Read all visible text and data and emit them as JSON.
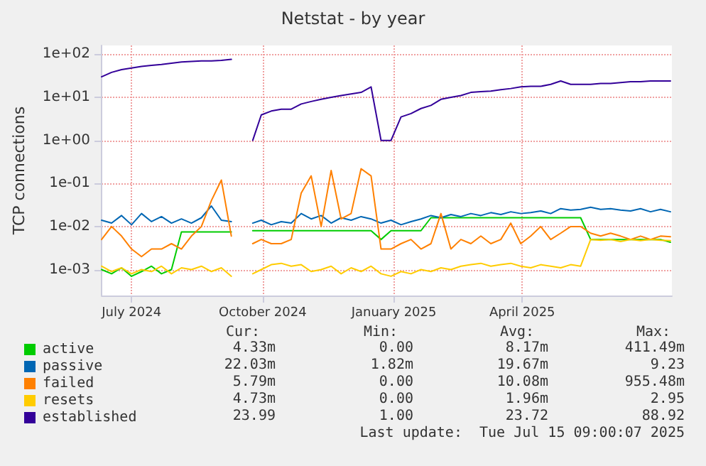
{
  "chart_data": {
    "type": "line",
    "title": "Netstat - by year",
    "ylabel": "TCP connections",
    "x": [
      "2024-06-10",
      "2024-06-17",
      "2024-06-24",
      "2024-07-01",
      "2024-07-08",
      "2024-07-15",
      "2024-07-22",
      "2024-07-29",
      "2024-08-05",
      "2024-08-12",
      "2024-08-19",
      "2024-08-26",
      "2024-09-02",
      "2024-09-09",
      "2024-09-16",
      "2024-09-24",
      "2024-09-30",
      "2024-10-07",
      "2024-10-14",
      "2024-10-21",
      "2024-10-28",
      "2024-11-04",
      "2024-11-11",
      "2024-11-18",
      "2024-11-25",
      "2024-12-02",
      "2024-12-09",
      "2024-12-16",
      "2024-12-23",
      "2024-12-30",
      "2025-01-06",
      "2025-01-13",
      "2025-01-20",
      "2025-01-27",
      "2025-02-03",
      "2025-02-10",
      "2025-02-17",
      "2025-02-24",
      "2025-03-03",
      "2025-03-10",
      "2025-03-17",
      "2025-03-24",
      "2025-03-31",
      "2025-04-07",
      "2025-04-14",
      "2025-04-21",
      "2025-04-28",
      "2025-05-05",
      "2025-05-12",
      "2025-05-19",
      "2025-05-26",
      "2025-06-02",
      "2025-06-09",
      "2025-06-16",
      "2025-06-23",
      "2025-06-30",
      "2025-07-07",
      "2025-07-14"
    ],
    "series": [
      {
        "name": "active",
        "color": "#00cc00",
        "values": [
          0.001,
          0.0008,
          0.0011,
          0.0007,
          0.0009,
          0.0012,
          0.0008,
          0.001,
          0.0075,
          0.0075,
          0.0075,
          0.0075,
          0.0075,
          0.0075,
          null,
          0.008,
          0.008,
          0.008,
          0.008,
          0.008,
          0.008,
          0.008,
          0.008,
          0.008,
          0.008,
          0.008,
          0.008,
          0.008,
          0.005,
          0.008,
          0.008,
          0.008,
          0.008,
          0.016,
          0.016,
          0.016,
          0.016,
          0.016,
          0.016,
          0.016,
          0.016,
          0.016,
          0.016,
          0.016,
          0.016,
          0.016,
          0.016,
          0.016,
          0.016,
          0.005,
          0.005,
          0.005,
          0.005,
          0.005,
          0.005,
          0.005,
          0.005,
          0.0043
        ]
      },
      {
        "name": "passive",
        "color": "#0066b3",
        "values": [
          0.014,
          0.012,
          0.018,
          0.011,
          0.02,
          0.013,
          0.017,
          0.012,
          0.015,
          0.012,
          0.016,
          0.03,
          0.014,
          0.013,
          null,
          0.012,
          0.014,
          0.011,
          0.013,
          0.012,
          0.02,
          0.015,
          0.018,
          0.012,
          0.016,
          0.014,
          0.017,
          0.015,
          0.012,
          0.014,
          0.011,
          0.013,
          0.015,
          0.018,
          0.016,
          0.019,
          0.017,
          0.02,
          0.018,
          0.021,
          0.019,
          0.022,
          0.02,
          0.021,
          0.023,
          0.02,
          0.026,
          0.024,
          0.025,
          0.028,
          0.025,
          0.026,
          0.024,
          0.023,
          0.026,
          0.022,
          0.025,
          0.022
        ]
      },
      {
        "name": "failed",
        "color": "#ff8000",
        "values": [
          0.005,
          0.01,
          0.006,
          0.003,
          0.002,
          0.003,
          0.003,
          0.004,
          0.003,
          0.006,
          0.01,
          0.04,
          0.12,
          0.006,
          null,
          0.004,
          0.005,
          0.004,
          0.004,
          0.005,
          0.06,
          0.15,
          0.01,
          0.2,
          0.015,
          0.02,
          0.22,
          0.15,
          0.003,
          0.003,
          0.004,
          0.005,
          0.003,
          0.004,
          0.02,
          0.003,
          0.005,
          0.004,
          0.006,
          0.004,
          0.005,
          0.012,
          0.004,
          0.006,
          0.01,
          0.005,
          0.007,
          0.01,
          0.01,
          0.007,
          0.006,
          0.007,
          0.006,
          0.005,
          0.006,
          0.005,
          0.006,
          0.0058
        ]
      },
      {
        "name": "resets",
        "color": "#ffcc00",
        "values": [
          0.0012,
          0.0009,
          0.0011,
          0.0008,
          0.001,
          0.0009,
          0.0012,
          0.0008,
          0.0011,
          0.001,
          0.0012,
          0.0009,
          0.0011,
          0.0007,
          null,
          0.0008,
          0.001,
          0.0013,
          0.0014,
          0.0012,
          0.0013,
          0.0009,
          0.001,
          0.0012,
          0.0008,
          0.0011,
          0.0009,
          0.0012,
          0.0008,
          0.0007,
          0.0009,
          0.0008,
          0.001,
          0.0009,
          0.0011,
          0.001,
          0.0012,
          0.0013,
          0.0014,
          0.0012,
          0.0013,
          0.0014,
          0.0012,
          0.0011,
          0.0013,
          0.0012,
          0.0011,
          0.0013,
          0.0012,
          0.005,
          0.0048,
          0.005,
          0.0045,
          0.005,
          0.0047,
          0.005,
          0.0048,
          0.0047
        ]
      },
      {
        "name": "established",
        "color": "#330099",
        "values": [
          30,
          38,
          44,
          48,
          52,
          55,
          58,
          62,
          66,
          68,
          70,
          70,
          72,
          76,
          null,
          1,
          3.9,
          4.8,
          5.3,
          5.3,
          7,
          8,
          9,
          10,
          11,
          12,
          13,
          17.5,
          1,
          1,
          3.5,
          4.2,
          5.5,
          6.5,
          9,
          10,
          11,
          13,
          13.5,
          14,
          15,
          16,
          17.5,
          18,
          18,
          20,
          24,
          20,
          20,
          20,
          21,
          21,
          22,
          23,
          23,
          24,
          24,
          24
        ]
      }
    ],
    "xlim": [
      "2024-06-10",
      "2025-07-15"
    ],
    "xticks": [
      {
        "value": "2024-07-01",
        "label": "July 2024"
      },
      {
        "value": "2024-10-01",
        "label": "October 2024"
      },
      {
        "value": "2025-01-01",
        "label": "January 2025"
      },
      {
        "value": "2025-04-01",
        "label": "April 2025"
      }
    ],
    "log": "y",
    "ylim": [
      0.00025,
      160
    ],
    "yticks": [
      {
        "value": 0.001,
        "label": "1e-03"
      },
      {
        "value": 0.01,
        "label": "1e-02"
      },
      {
        "value": 0.1,
        "label": "1e-01"
      },
      {
        "value": 1,
        "label": "1e+00"
      },
      {
        "value": 10,
        "label": "1e+01"
      },
      {
        "value": 100,
        "label": "1e+02"
      }
    ],
    "grid": true,
    "legend": "bottom",
    "line_style": "solid",
    "marker": "none",
    "annotations": [
      "Cur:",
      "Min:",
      "Avg:",
      "Max:",
      "4.33m",
      "0.00",
      "8.17m",
      "411.49m",
      "22.03m",
      "1.82m",
      "19.67m",
      "9.23",
      "5.79m",
      "0.00",
      "10.08m",
      "955.48m",
      "4.73m",
      "0.00",
      "1.96m",
      "2.95",
      "23.99",
      "1.00",
      "23.72",
      "88.92",
      "Last update:  Tue Jul 15 09:00:07 2025"
    ]
  }
}
